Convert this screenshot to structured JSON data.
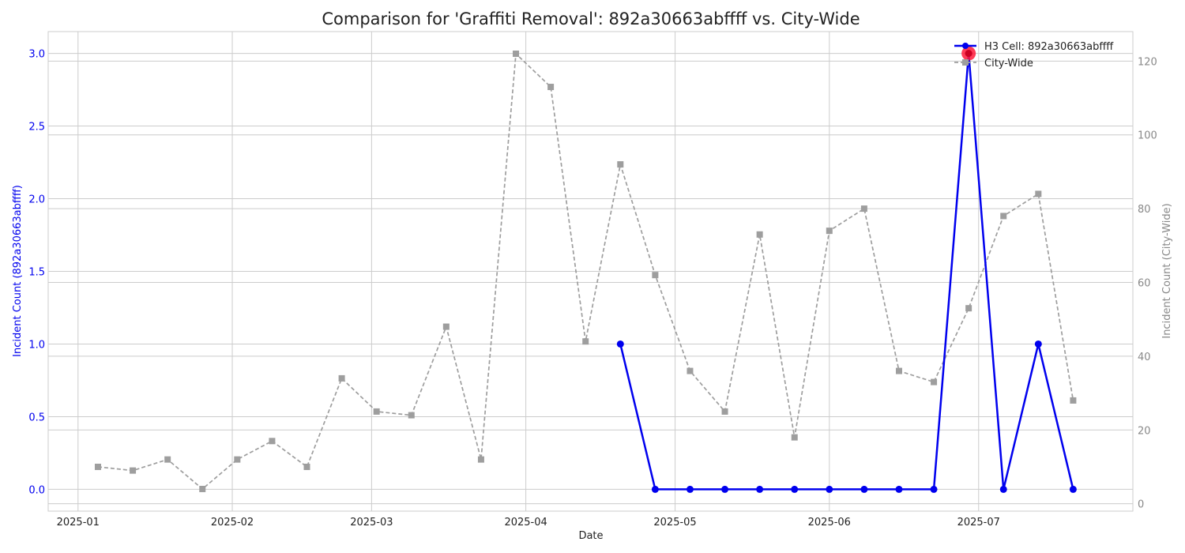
{
  "chart_data": {
    "type": "line",
    "title": "Comparison for 'Graffiti Removal': 892a30663abffff vs. City-Wide",
    "xlabel": "Date",
    "ylabel_left": "Incident Count (892a30663abffff)",
    "ylabel_right": "Incident Count (City-Wide)",
    "xlim": [
      "2024-12-26",
      "2025-08-01"
    ],
    "ylim_left": [
      -0.15,
      3.15
    ],
    "ylim_right": [
      -2,
      128
    ],
    "x_ticks": [
      "2025-01-01",
      "2025-02-01",
      "2025-03-01",
      "2025-04-01",
      "2025-05-01",
      "2025-06-01",
      "2025-07-01"
    ],
    "x_tick_labels": [
      "2025-01",
      "2025-02",
      "2025-03",
      "2025-04",
      "2025-05",
      "2025-06",
      "2025-07"
    ],
    "y_ticks_left": [
      0.0,
      0.5,
      1.0,
      1.5,
      2.0,
      2.5,
      3.0
    ],
    "y_tick_labels_left": [
      "0.0",
      "0.5",
      "1.0",
      "1.5",
      "2.0",
      "2.5",
      "3.0"
    ],
    "y_ticks_right": [
      0,
      20,
      40,
      60,
      80,
      100,
      120
    ],
    "y_tick_labels_right": [
      "0",
      "20",
      "40",
      "60",
      "80",
      "100",
      "120"
    ],
    "grid": true,
    "legend_position": "top-right",
    "series": [
      {
        "name": "H3 Cell: 892a30663abffff",
        "axis": "left",
        "color": "#0000ee",
        "style": "solid",
        "marker": "circle",
        "x": [
          "2025-04-20",
          "2025-04-27",
          "2025-05-04",
          "2025-05-11",
          "2025-05-18",
          "2025-05-25",
          "2025-06-01",
          "2025-06-08",
          "2025-06-15",
          "2025-06-22",
          "2025-06-29",
          "2025-07-06",
          "2025-07-13",
          "2025-07-20"
        ],
        "values": [
          1,
          0,
          0,
          0,
          0,
          0,
          0,
          0,
          0,
          0,
          3,
          0,
          1,
          0
        ]
      },
      {
        "name": "City-Wide",
        "axis": "right",
        "color": "#9e9e9e",
        "style": "dashed",
        "marker": "square",
        "x": [
          "2025-01-05",
          "2025-01-12",
          "2025-01-19",
          "2025-01-26",
          "2025-02-02",
          "2025-02-09",
          "2025-02-16",
          "2025-02-23",
          "2025-03-02",
          "2025-03-09",
          "2025-03-16",
          "2025-03-23",
          "2025-03-30",
          "2025-04-06",
          "2025-04-13",
          "2025-04-20",
          "2025-04-27",
          "2025-05-04",
          "2025-05-11",
          "2025-05-18",
          "2025-05-25",
          "2025-06-01",
          "2025-06-08",
          "2025-06-15",
          "2025-06-22",
          "2025-06-29",
          "2025-07-06",
          "2025-07-13",
          "2025-07-20"
        ],
        "values": [
          10,
          9,
          12,
          4,
          12,
          17,
          10,
          34,
          25,
          24,
          48,
          12,
          122,
          113,
          44,
          92,
          62,
          36,
          25,
          73,
          18,
          74,
          80,
          36,
          33,
          53,
          78,
          84,
          28
        ]
      }
    ],
    "highlight": {
      "series": 0,
      "x": "2025-06-29",
      "value": 3,
      "color": "#ff1a3a"
    }
  }
}
